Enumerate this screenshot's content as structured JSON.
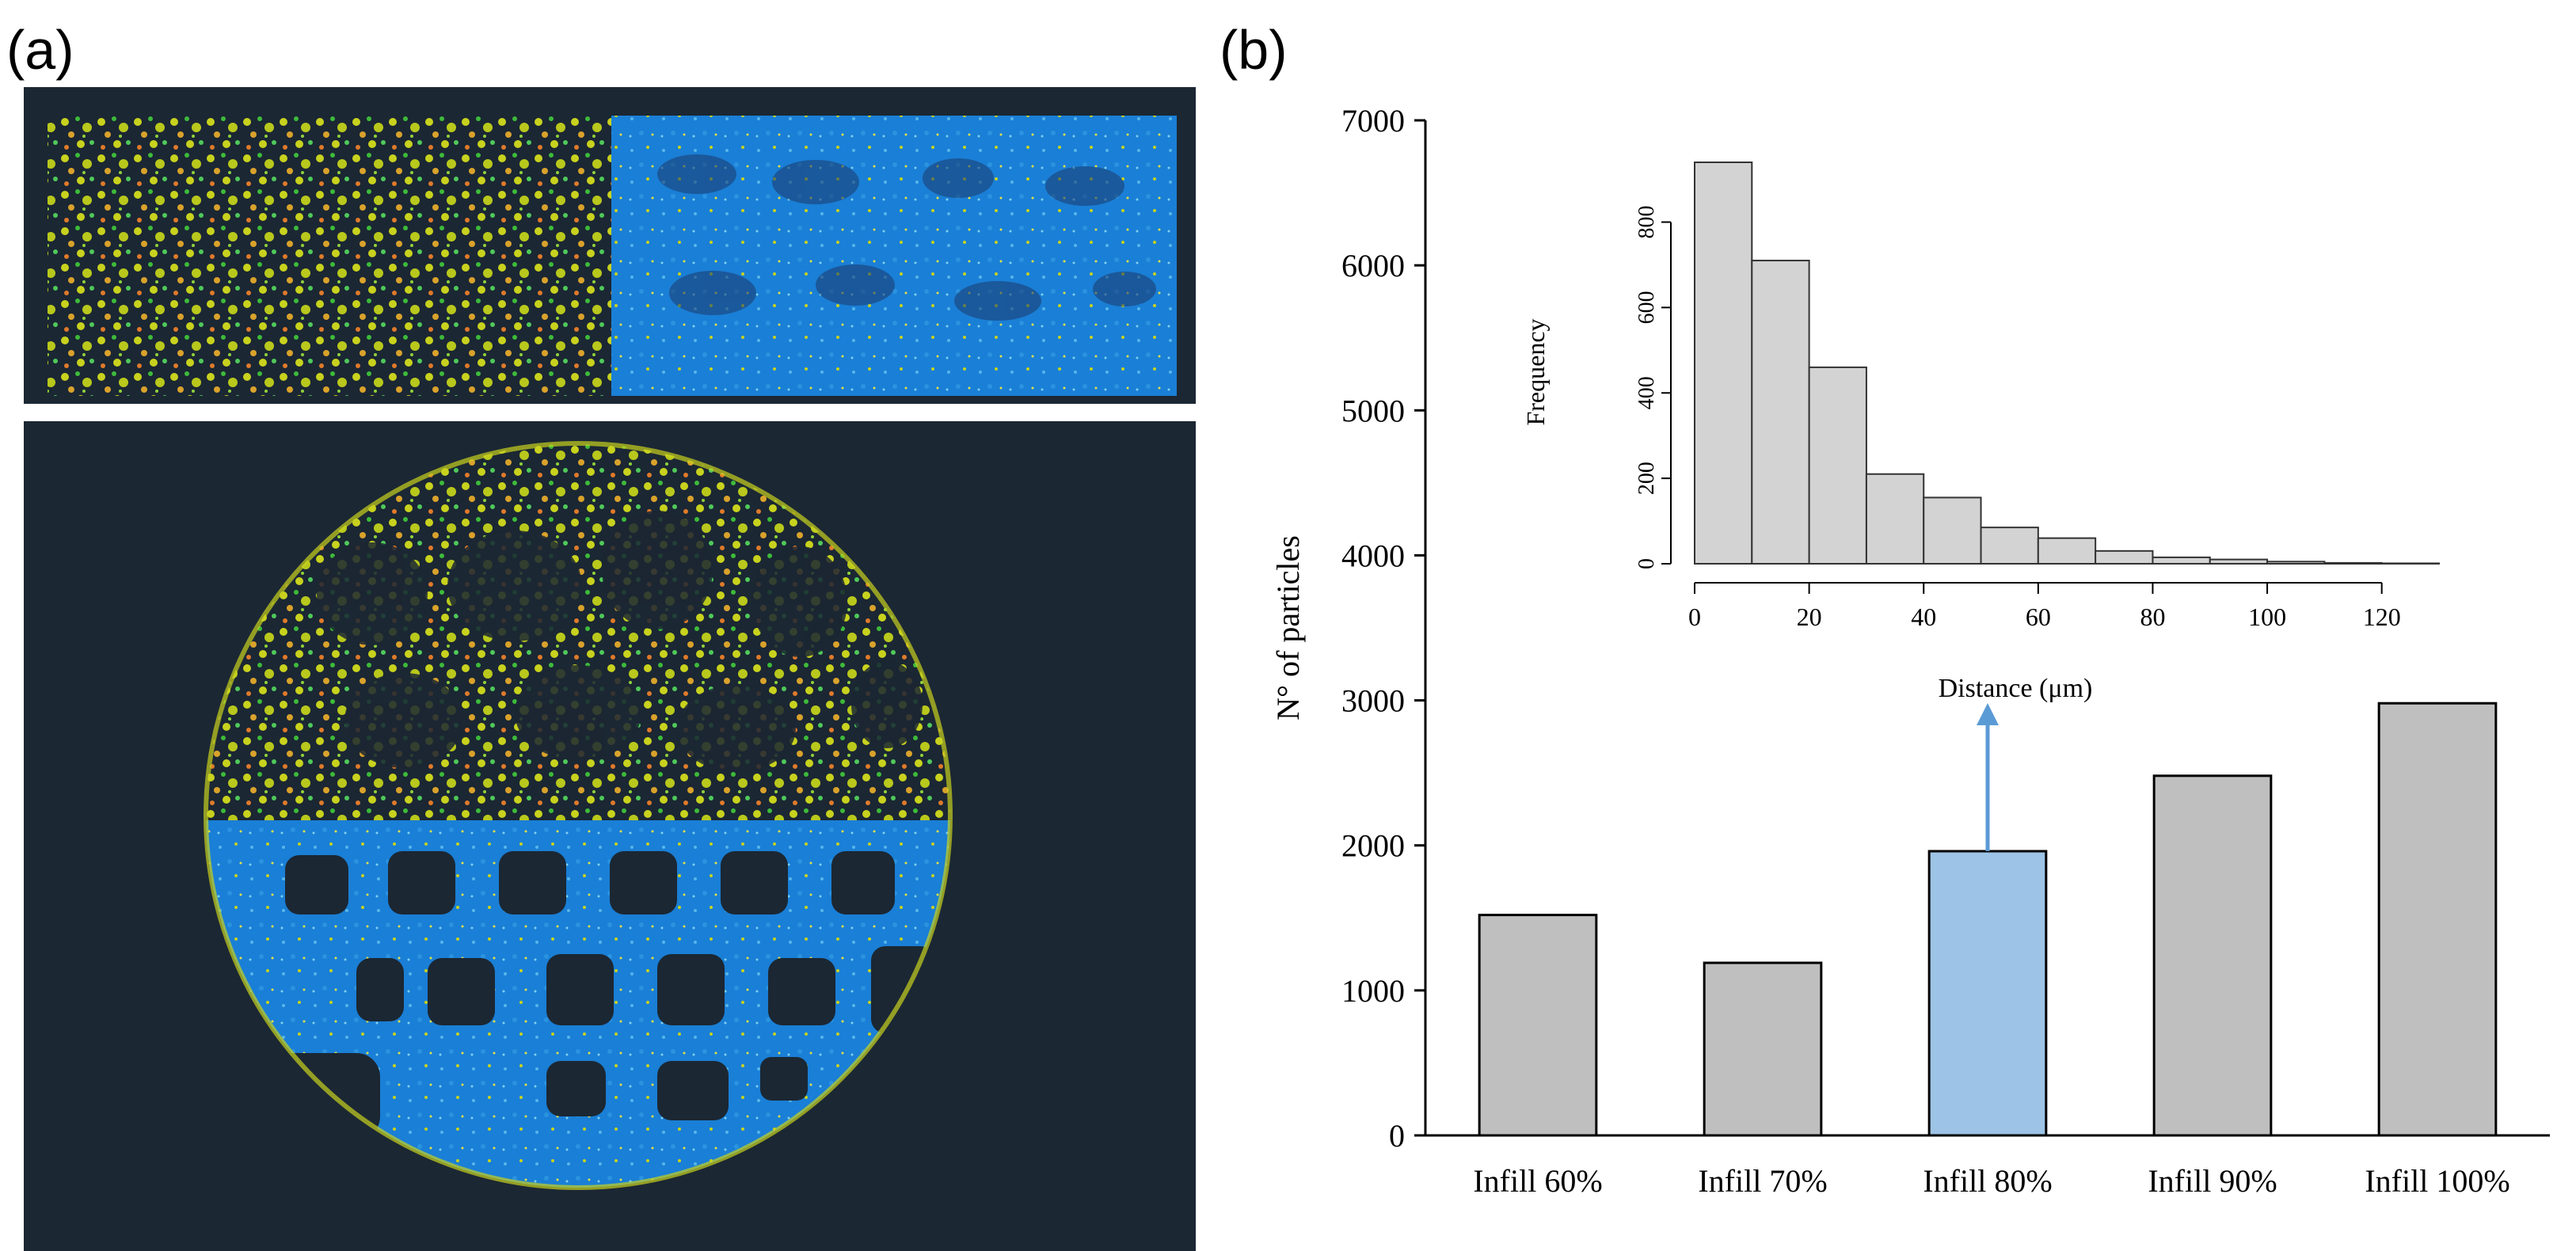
{
  "panel_a": {
    "label": "(a)"
  },
  "panel_b": {
    "label": "(b)"
  },
  "colors": {
    "background_dark": "#1b2733",
    "bar_gray": "#bfbfbf",
    "bar_highlight": "#9dc3e6",
    "arrow": "#5b9bd5",
    "hist_fill": "#d3d3d3",
    "scan_blue": "#1a7fd6",
    "scan_yellow": "#c8d21e",
    "scan_green": "#3dbb3a",
    "scan_orange": "#d9822b"
  },
  "chart_data": [
    {
      "type": "bar",
      "categories": [
        "Infill 60%",
        "Infill 70%",
        "Infill 80%",
        "Infill 90%",
        "Infill 100%"
      ],
      "values": [
        1520,
        1190,
        1960,
        2480,
        2980
      ],
      "highlight_index": 2,
      "ylabel": "N° of particles",
      "xlabel": "",
      "ylim": [
        0,
        7000
      ],
      "yticks": [
        0,
        1000,
        2000,
        3000,
        4000,
        5000,
        6000,
        7000
      ],
      "ytick_labels": [
        "0",
        "1000",
        "2000",
        "3000",
        "4000",
        "5000",
        "6000",
        "7000"
      ],
      "grid": false,
      "annotation": "upward arrow from Infill 80% bar to inset histogram"
    },
    {
      "type": "bar",
      "subtype": "histogram",
      "bin_edges": [
        0,
        10,
        20,
        30,
        40,
        50,
        60,
        70,
        80,
        90,
        100,
        110,
        120,
        130
      ],
      "values": [
        940,
        710,
        460,
        210,
        155,
        85,
        60,
        30,
        15,
        10,
        5,
        2,
        1
      ],
      "xlabel": "Distance (μm)",
      "ylabel": "Frequency",
      "xlim": [
        0,
        130
      ],
      "ylim": [
        0,
        940
      ],
      "xticks": [
        0,
        20,
        40,
        60,
        80,
        100,
        120
      ],
      "xtick_labels": [
        "0",
        "20",
        "40",
        "60",
        "80",
        "100",
        "120"
      ],
      "yticks": [
        0,
        200,
        400,
        600,
        800
      ],
      "ytick_labels": [
        "0",
        "200",
        "400",
        "600",
        "800"
      ],
      "grid": false
    }
  ]
}
